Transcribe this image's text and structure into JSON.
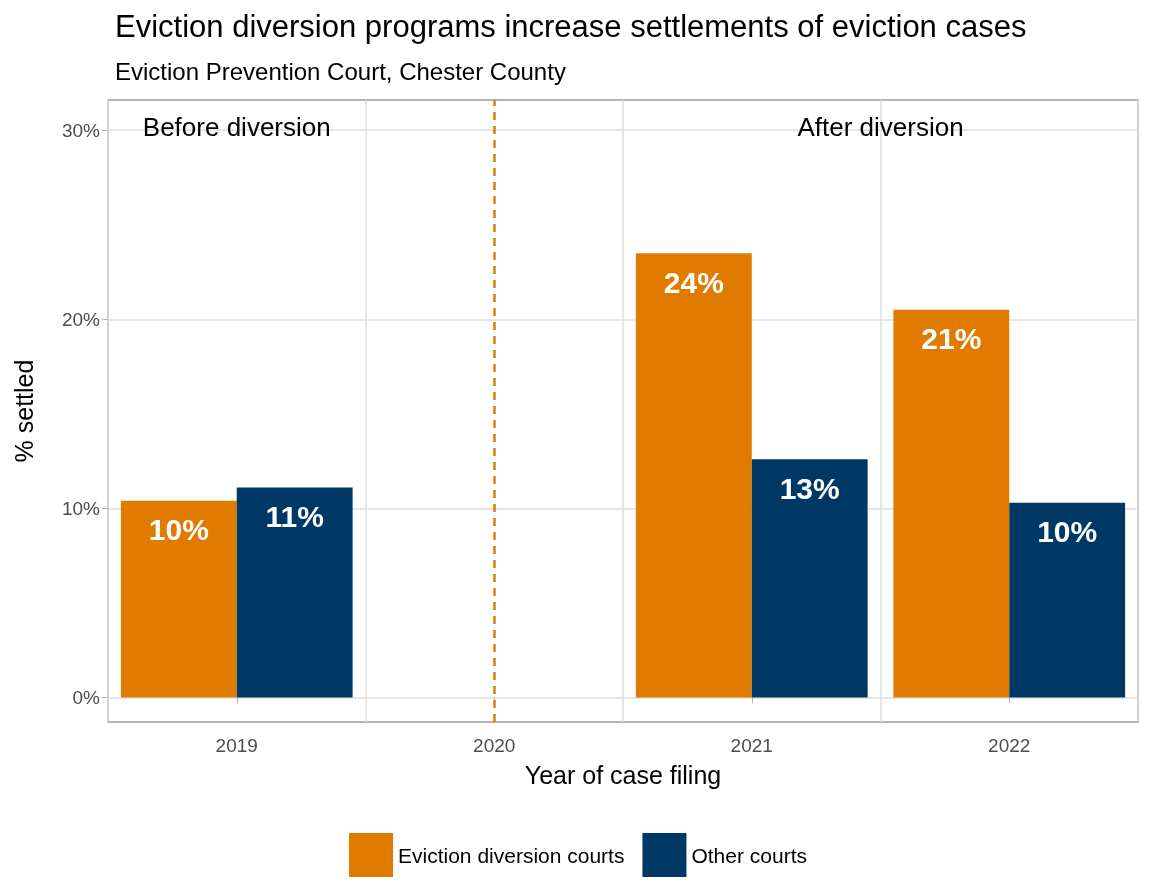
{
  "chart_data": {
    "type": "bar",
    "title": "Eviction diversion programs increase settlements of eviction cases",
    "subtitle": "Eviction Prevention Court, Chester County",
    "xlabel": "Year of case filing",
    "ylabel": "% settled",
    "categories": [
      "2019",
      "2020",
      "2021",
      "2022"
    ],
    "series": [
      {
        "name": "Eviction diversion courts",
        "color": "#e07b00",
        "values": [
          10.4,
          null,
          23.5,
          20.5
        ],
        "value_labels": [
          "10%",
          null,
          "24%",
          "21%"
        ]
      },
      {
        "name": "Other courts",
        "color": "#003865",
        "values": [
          11.1,
          null,
          12.6,
          10.3
        ],
        "value_labels": [
          "11%",
          null,
          "13%",
          "10%"
        ]
      }
    ],
    "ylim": [
      -1.3,
      31.6
    ],
    "yticks": [
      {
        "value": 0,
        "label": "0%"
      },
      {
        "value": 10,
        "label": "10%"
      },
      {
        "value": 20,
        "label": "20%"
      },
      {
        "value": 30,
        "label": "30%"
      }
    ],
    "ref_lines": [
      {
        "axis": "x",
        "value": "2020",
        "color": "#e07b00",
        "line_style": "dashed"
      }
    ],
    "annotations": [
      "Before diversion",
      "After diversion"
    ],
    "grid": true,
    "legend": "bottom"
  }
}
